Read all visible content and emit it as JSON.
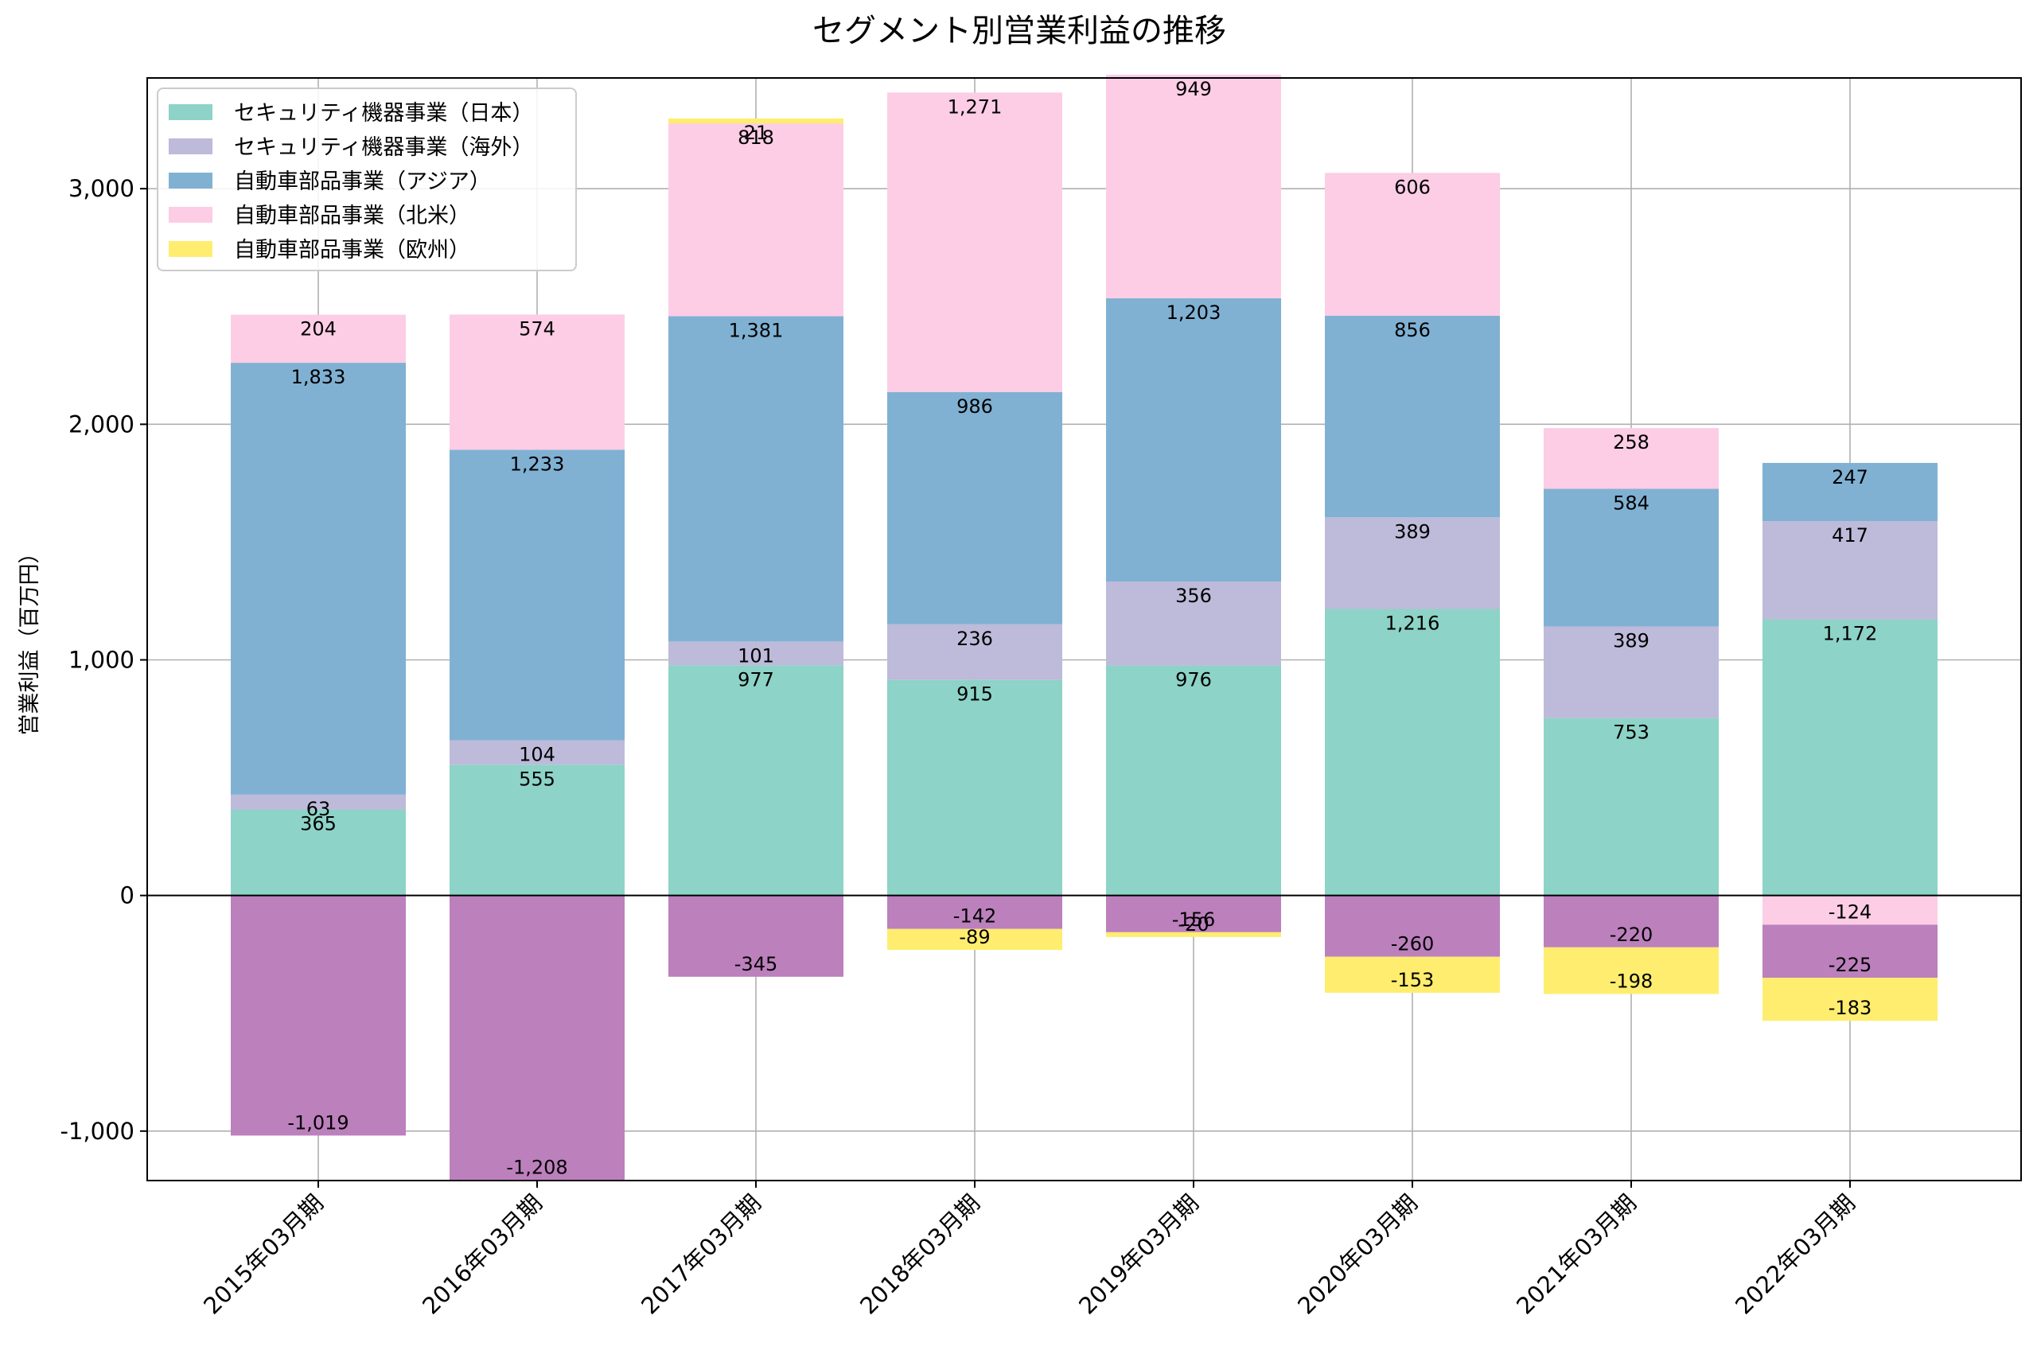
{
  "chart_data": {
    "type": "bar",
    "stacked": true,
    "title": "セグメント別営業利益の推移",
    "xlabel": "",
    "ylabel": "営業利益（百万円）",
    "ylim": [
      -1210,
      3470
    ],
    "yticks": [
      -1000,
      0,
      1000,
      2000,
      3000
    ],
    "ytick_labels": [
      "-1,000",
      "0",
      "1,000",
      "2,000",
      "3,000"
    ],
    "grid": true,
    "legend_position": "top-left",
    "categories": [
      "2015年03月期",
      "2016年03月期",
      "2017年03月期",
      "2018年03月期",
      "2019年03月期",
      "2020年03月期",
      "2021年03月期",
      "2022年03月期"
    ],
    "series": [
      {
        "name": "セキュリティ機器事業（日本）",
        "color": "#8dd3c7",
        "in_legend": true,
        "values": [
          365,
          555,
          977,
          915,
          976,
          1216,
          753,
          1172
        ],
        "labels": [
          "365",
          "555",
          "977",
          "915",
          "976",
          "1,216",
          "753",
          "1,172"
        ]
      },
      {
        "name": "セキュリティ機器事業（海外）",
        "color": "#bebada",
        "in_legend": true,
        "values": [
          63,
          104,
          101,
          236,
          356,
          389,
          389,
          417
        ],
        "labels": [
          "63",
          "104",
          "101",
          "236",
          "356",
          "389",
          "389",
          "417"
        ]
      },
      {
        "name": "自動車部品事業（アジア）",
        "color": "#80b1d3",
        "in_legend": true,
        "values": [
          1833,
          1233,
          1381,
          986,
          1203,
          856,
          584,
          247
        ],
        "labels": [
          "1,833",
          "1,233",
          "1,381",
          "986",
          "1,203",
          "856",
          "584",
          "247"
        ]
      },
      {
        "name": "自動車部品事業（北米）",
        "color": "#fccde5",
        "in_legend": true,
        "values": [
          204,
          574,
          818,
          1271,
          949,
          606,
          258,
          -124
        ],
        "labels": [
          "204",
          "574",
          "818",
          "1,271",
          "949",
          "606",
          "258",
          "-124"
        ]
      },
      {
        "name": "",
        "color": "#bc80bd",
        "in_legend": false,
        "values": [
          -1019,
          -1208,
          -345,
          -142,
          -156,
          -260,
          -220,
          -225
        ],
        "labels": [
          "-1,019",
          "-1,208",
          "-345",
          "-142",
          "-156",
          "-260",
          "-220",
          "-225"
        ]
      },
      {
        "name": "自動車部品事業（欧州）",
        "color": "#ffed6f",
        "in_legend": true,
        "values": [
          0,
          0,
          21,
          -89,
          -20,
          -153,
          -198,
          -183
        ],
        "labels": [
          "",
          "",
          "21",
          "-89",
          "-20",
          "-153",
          "-198",
          "-183"
        ]
      }
    ]
  }
}
